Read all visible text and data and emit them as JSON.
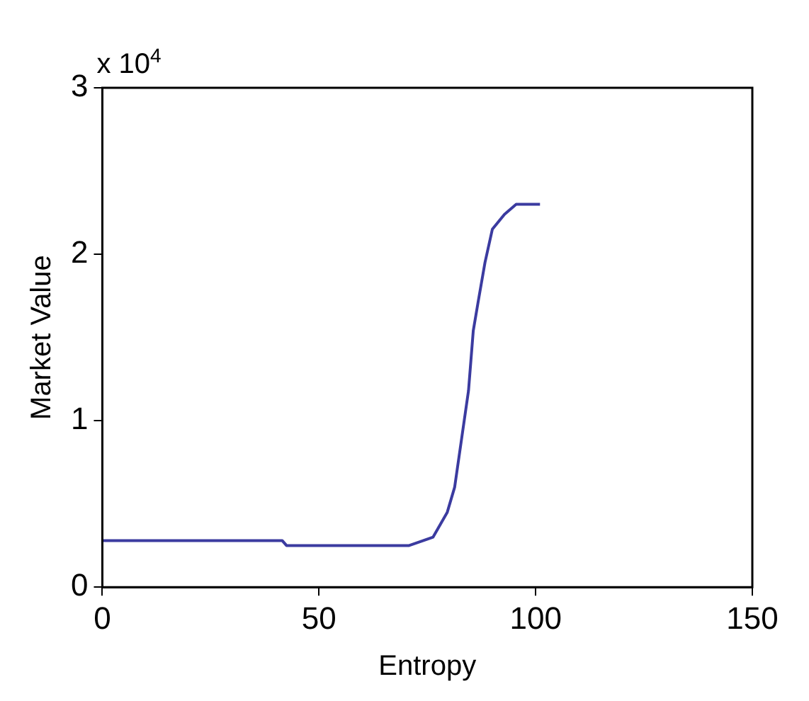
{
  "chart_data": {
    "type": "line",
    "xlabel": "Entropy",
    "ylabel": "Market Value",
    "annotations": [
      "x 10$^{4}$"
    ],
    "series": [
      {
        "color": "#3b3ba0",
        "x": [
          0,
          20,
          41.5,
          42.5,
          63,
          70.8,
          76.3,
          79.6,
          81.3,
          82.9,
          84.5,
          85.6,
          86.7,
          88.3,
          90,
          92.8,
          95.5,
          101
        ],
        "values": [
          0.28,
          0.28,
          0.28,
          0.25,
          0.25,
          0.25,
          0.3,
          0.45,
          0.6,
          0.89,
          1.18,
          1.54,
          1.71,
          1.95,
          2.15,
          2.24,
          2.3,
          2.3
        ]
      }
    ],
    "xlim": [
      0,
      150
    ],
    "xticks": [
      0,
      50,
      100,
      150
    ],
    "ylim": [
      0,
      3
    ],
    "yticks": [
      0,
      1,
      2,
      3
    ],
    "grid": false,
    "legend": false,
    "marker": "none",
    "line_style": "solid"
  }
}
